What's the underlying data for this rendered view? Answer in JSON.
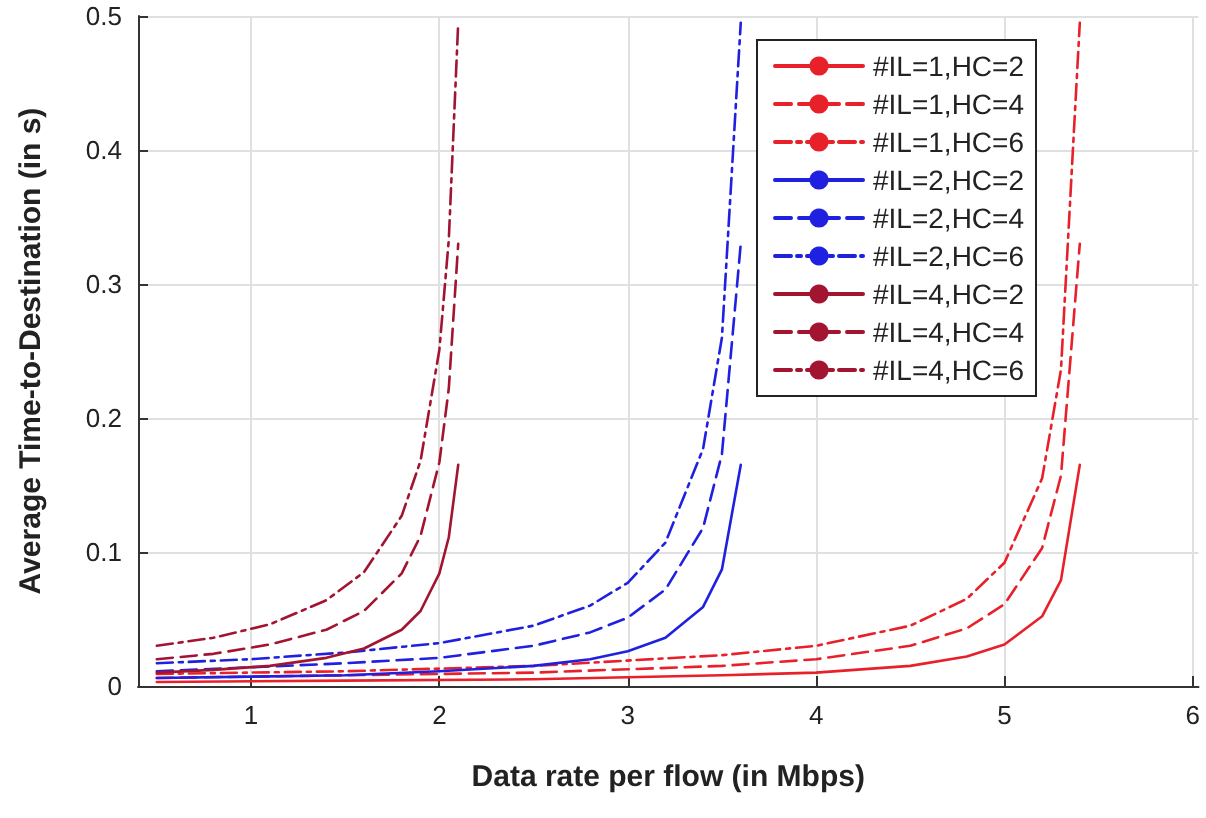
{
  "chart_data": {
    "type": "line",
    "xlabel": "Data rate per flow (in Mbps)",
    "ylabel": "Average Time-to-Destination (in s)",
    "xlim": [
      0.4,
      6.03
    ],
    "xticks": [
      1,
      2,
      3,
      4,
      5,
      6
    ],
    "ylim": [
      0,
      0.5
    ],
    "yticks": [
      0,
      0.1,
      0.2,
      0.3,
      0.4,
      0.5
    ],
    "grid": true,
    "legend": "top right",
    "marker": "none",
    "series": [
      {
        "name": "#IL=1,HC=2",
        "color": "#e8202a",
        "line_style": "solid",
        "x": [
          0.5,
          1.5,
          2.5,
          3.5,
          4.0,
          4.5,
          4.8,
          5.0,
          5.2,
          5.3,
          5.4
        ],
        "values": [
          0.003,
          0.004,
          0.005,
          0.008,
          0.01,
          0.015,
          0.022,
          0.031,
          0.052,
          0.079,
          0.165
        ]
      },
      {
        "name": "#IL=1,HC=4",
        "color": "#e8202a",
        "line_style": "dashed",
        "x": [
          0.5,
          1.5,
          2.5,
          3.5,
          4.0,
          4.5,
          4.8,
          5.0,
          5.2,
          5.3,
          5.4
        ],
        "values": [
          0.006,
          0.008,
          0.01,
          0.015,
          0.02,
          0.03,
          0.043,
          0.061,
          0.103,
          0.157,
          0.33
        ]
      },
      {
        "name": "#IL=1,HC=6",
        "color": "#e8202a",
        "line_style": "dashdot",
        "x": [
          0.5,
          1.5,
          2.5,
          3.5,
          4.0,
          4.5,
          4.8,
          5.0,
          5.2,
          5.3,
          5.4
        ],
        "values": [
          0.009,
          0.011,
          0.015,
          0.023,
          0.03,
          0.045,
          0.065,
          0.092,
          0.155,
          0.236,
          0.495
        ]
      },
      {
        "name": "#IL=2,HC=2",
        "color": "#2020e0",
        "line_style": "solid",
        "x": [
          0.5,
          1,
          1.5,
          2,
          2.5,
          2.8,
          3.0,
          3.2,
          3.4,
          3.5,
          3.6
        ],
        "values": [
          0.006,
          0.007,
          0.008,
          0.011,
          0.015,
          0.02,
          0.026,
          0.036,
          0.059,
          0.087,
          0.165
        ]
      },
      {
        "name": "#IL=2,HC=4",
        "color": "#2020e0",
        "line_style": "dashed",
        "x": [
          0.5,
          1,
          1.5,
          2,
          2.5,
          2.8,
          3.0,
          3.2,
          3.4,
          3.5,
          3.6
        ],
        "values": [
          0.011,
          0.014,
          0.017,
          0.021,
          0.03,
          0.04,
          0.051,
          0.072,
          0.118,
          0.173,
          0.33
        ]
      },
      {
        "name": "#IL=2,HC=6",
        "color": "#2020e0",
        "line_style": "dashdot",
        "x": [
          0.5,
          1,
          1.5,
          2,
          2.5,
          2.8,
          3.0,
          3.2,
          3.4,
          3.5,
          3.6
        ],
        "values": [
          0.017,
          0.02,
          0.025,
          0.032,
          0.045,
          0.06,
          0.077,
          0.107,
          0.177,
          0.26,
          0.495
        ]
      },
      {
        "name": "#IL=4,HC=2",
        "color": "#a2142f",
        "line_style": "solid",
        "x": [
          0.5,
          0.8,
          1.1,
          1.4,
          1.6,
          1.8,
          1.9,
          2.0,
          2.05,
          2.1
        ],
        "values": [
          0.01,
          0.012,
          0.015,
          0.021,
          0.028,
          0.042,
          0.056,
          0.084,
          0.111,
          0.165
        ]
      },
      {
        "name": "#IL=4,HC=4",
        "color": "#a2142f",
        "line_style": "dashed",
        "x": [
          0.5,
          0.8,
          1.1,
          1.4,
          1.6,
          1.8,
          1.9,
          2.0,
          2.05,
          2.1
        ],
        "values": [
          0.02,
          0.024,
          0.031,
          0.042,
          0.056,
          0.084,
          0.112,
          0.167,
          0.222,
          0.33
        ]
      },
      {
        "name": "#IL=4,HC=6",
        "color": "#a2142f",
        "line_style": "dashdot",
        "x": [
          0.5,
          0.8,
          1.1,
          1.4,
          1.6,
          1.8,
          1.9,
          2.0,
          2.05,
          2.1
        ],
        "values": [
          0.03,
          0.036,
          0.046,
          0.064,
          0.085,
          0.127,
          0.168,
          0.251,
          0.333,
          0.495
        ]
      }
    ]
  }
}
